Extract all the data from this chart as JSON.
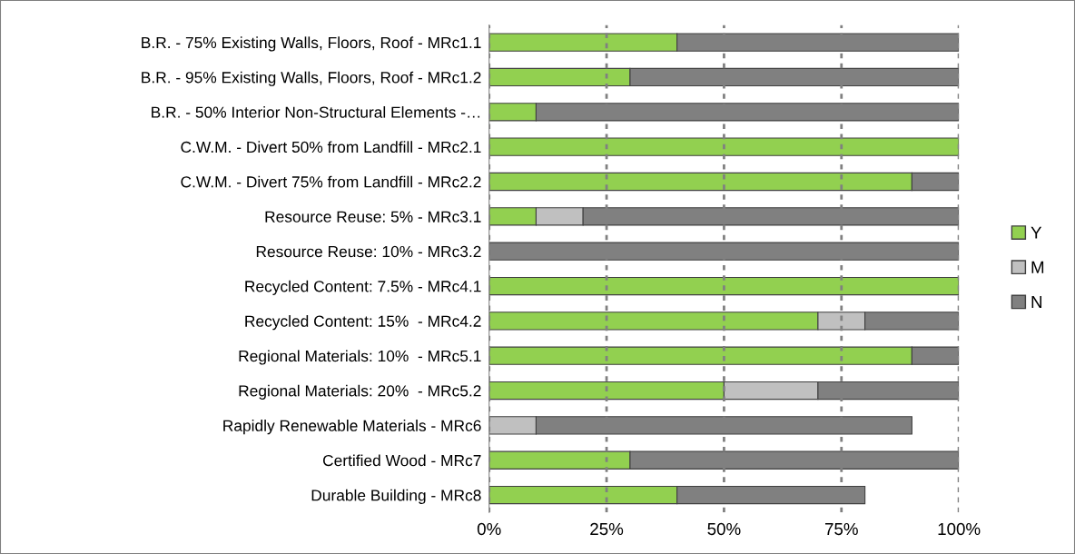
{
  "chart_data": {
    "type": "bar",
    "orientation": "horizontal",
    "stacked": true,
    "categories": [
      "B.R. - 75% Existing Walls, Floors, Roof - MRc1.1",
      "B.R. - 95% Existing Walls, Floors, Roof - MRc1.2",
      "B.R. - 50% Interior Non-Structural Elements -…",
      "C.W.M. - Divert 50% from Landfill - MRc2.1",
      "C.W.M. - Divert 75% from Landfill - MRc2.2",
      "Resource Reuse: 5% - MRc3.1",
      "Resource Reuse: 10% - MRc3.2",
      "Recycled Content: 7.5% - MRc4.1",
      "Recycled Content: 15%  - MRc4.2",
      "Regional Materials: 10%  - MRc5.1",
      "Regional Materials: 20%  - MRc5.2",
      "Rapidly Renewable Materials - MRc6",
      "Certified Wood - MRc7",
      "Durable Building - MRc8"
    ],
    "series": [
      {
        "name": "Y",
        "color": "#92d050",
        "values": [
          40,
          30,
          10,
          100,
          90,
          10,
          0,
          100,
          70,
          90,
          50,
          0,
          30,
          40
        ]
      },
      {
        "name": "M",
        "color": "#c0c0c0",
        "values": [
          0,
          0,
          0,
          0,
          0,
          10,
          0,
          0,
          10,
          0,
          20,
          10,
          0,
          0
        ]
      },
      {
        "name": "N",
        "color": "#808080",
        "values": [
          60,
          70,
          90,
          0,
          10,
          80,
          100,
          0,
          20,
          10,
          30,
          80,
          70,
          40
        ]
      }
    ],
    "xlim": [
      0,
      100
    ],
    "xticks": [
      {
        "value": 0,
        "label": "0%"
      },
      {
        "value": 25,
        "label": "25%"
      },
      {
        "value": 50,
        "label": "50%"
      },
      {
        "value": 75,
        "label": "75%"
      },
      {
        "value": 100,
        "label": "100%"
      }
    ],
    "grid": "x",
    "legend": "right"
  }
}
